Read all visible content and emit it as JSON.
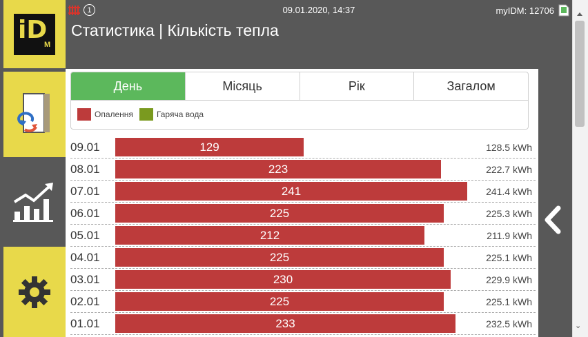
{
  "status": {
    "datetime": "09.01.2020, 14:37",
    "device": "myIDM: 12706",
    "notification_count": "1"
  },
  "page_title": "Статистика | Кількість тепла",
  "logo": {
    "text_main": "iD",
    "text_sub": "M"
  },
  "tabs": [
    {
      "label": "День",
      "active": true
    },
    {
      "label": "Місяць",
      "active": false
    },
    {
      "label": "Рік",
      "active": false
    },
    {
      "label": "Загалом",
      "active": false
    }
  ],
  "legend": [
    {
      "label": "Опалення",
      "color": "#bd3b3b"
    },
    {
      "label": "Гаряча вода",
      "color": "#7a9a1f"
    }
  ],
  "rows": [
    {
      "date": "09.01",
      "value": 129,
      "label": "129",
      "kwh": "128.5 kWh"
    },
    {
      "date": "08.01",
      "value": 223,
      "label": "223",
      "kwh": "222.7 kWh"
    },
    {
      "date": "07.01",
      "value": 241,
      "label": "241",
      "kwh": "241.4 kWh"
    },
    {
      "date": "06.01",
      "value": 225,
      "label": "225",
      "kwh": "225.3 kWh"
    },
    {
      "date": "05.01",
      "value": 212,
      "label": "212",
      "kwh": "211.9 kWh"
    },
    {
      "date": "04.01",
      "value": 225,
      "label": "225",
      "kwh": "225.1 kWh"
    },
    {
      "date": "03.01",
      "value": 230,
      "label": "230",
      "kwh": "229.9 kWh"
    },
    {
      "date": "02.01",
      "value": 225,
      "label": "225",
      "kwh": "225.1 kWh"
    },
    {
      "date": "01.01",
      "value": 233,
      "label": "233",
      "kwh": "232.5 kWh"
    }
  ],
  "colors": {
    "header_bg": "#585858",
    "accent_yellow": "#e8d94a",
    "active_tab": "#5cb85c",
    "heating_bar": "#bd3b3b",
    "hot_water": "#7a9a1f"
  },
  "icons": {
    "status": [
      "heating-status-icon",
      "notification-icon"
    ],
    "nav": [
      "heat-pump-menu-icon",
      "statistics-icon",
      "settings-gear-icon"
    ],
    "misc": [
      "sd-card-icon",
      "back-chevron-icon"
    ]
  }
}
